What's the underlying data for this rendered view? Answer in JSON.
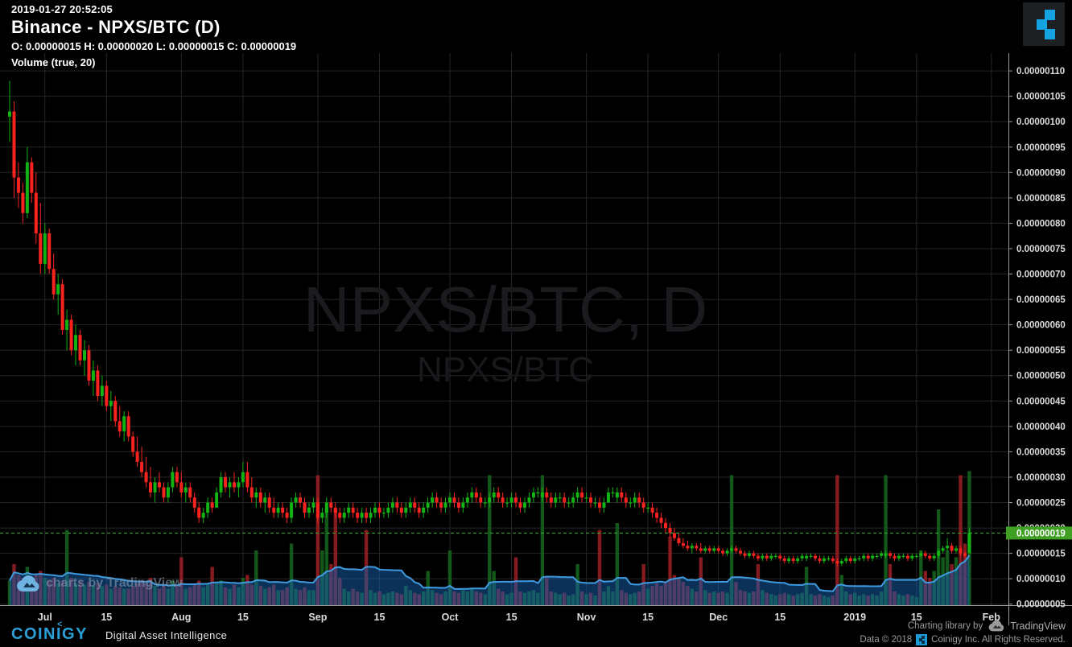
{
  "header": {
    "timestamp": "2019-01-27 20:52:05",
    "title": "Binance - NPXS/BTC (D)",
    "ohlc": "O: 0.00000015 H: 0.00000020 L: 0.00000015 C: 0.00000019",
    "indicator_label": "Volume (true, 20)"
  },
  "watermark": {
    "primary": "NPXS/BTC, D",
    "secondary": "NPXS/BTC"
  },
  "price_axis": {
    "ticks": [
      "0.00000110",
      "0.00000105",
      "0.00000100",
      "0.00000095",
      "0.00000090",
      "0.00000085",
      "0.00000080",
      "0.00000075",
      "0.00000070",
      "0.00000065",
      "0.00000060",
      "0.00000055",
      "0.00000050",
      "0.00000045",
      "0.00000040",
      "0.00000035",
      "0.00000030",
      "0.00000025",
      "0.00000020",
      "0.00000015",
      "0.00000010",
      "0.00000005"
    ],
    "current_price_label": "0.00000019"
  },
  "time_axis": {
    "ticks": [
      {
        "label": "Jul",
        "i": 8
      },
      {
        "label": "15",
        "i": 22
      },
      {
        "label": "Aug",
        "i": 39
      },
      {
        "label": "15",
        "i": 53
      },
      {
        "label": "Sep",
        "i": 70
      },
      {
        "label": "15",
        "i": 84
      },
      {
        "label": "Oct",
        "i": 100
      },
      {
        "label": "15",
        "i": 114
      },
      {
        "label": "Nov",
        "i": 131
      },
      {
        "label": "15",
        "i": 145
      },
      {
        "label": "Dec",
        "i": 161
      },
      {
        "label": "15",
        "i": 175
      },
      {
        "label": "2019",
        "i": 192
      },
      {
        "label": "15",
        "i": 206
      },
      {
        "label": "Feb",
        "i": 223
      }
    ]
  },
  "branding": {
    "tv_chart_watermark": "charts by TradingView",
    "coinigy_wordmark": "COINIGY",
    "coinigy_caret": "<",
    "coinigy_tagline": "Digital Asset Intelligence",
    "charting_library_by": "Charting library by",
    "tradingview_name": "TradingView",
    "data_copyright": "Data © 2018",
    "rights_text": "Coinigy Inc. All Rights Reserved."
  },
  "colors": {
    "up": "#12b312",
    "down": "#f8231f",
    "vol_up": "rgba(22,96,30,0.9)",
    "vol_down": "rgba(156,30,36,0.85)",
    "ma_line": "#3f9be0",
    "ma_fill": "rgba(24,97,175,0.5)",
    "price_line": "#2eb82e",
    "badge_bg": "#3fa024",
    "grid": "#262626",
    "axis_text": "#dcdcdc",
    "axis_border": "#9a9a9a",
    "watermark_primary": "#191b1e",
    "watermark_secondary": "#17191c"
  },
  "chart_data": {
    "type": "candlestick",
    "exchange": "Binance",
    "symbol": "NPXS/BTC",
    "interval": "D",
    "price_unit": "1e-8 BTC (satoshi)",
    "title": "Binance - NPXS/BTC (D)",
    "last_ohlc": {
      "open": 15,
      "high": 20,
      "low": 15,
      "close": 19
    },
    "current_price": 19,
    "y_domain": [
      4.8,
      113.5
    ],
    "y_grid_step": 5,
    "volume_ma_period": 20,
    "legend": "Volume (true, 20)",
    "candles_format": [
      "open",
      "high",
      "low",
      "close",
      "relative_volume"
    ],
    "candles": [
      [
        101,
        108,
        96,
        102,
        18
      ],
      [
        102,
        104,
        85,
        89,
        30
      ],
      [
        89,
        92,
        83,
        86,
        22
      ],
      [
        86,
        88,
        80,
        82,
        20
      ],
      [
        82,
        95,
        81,
        92,
        28
      ],
      [
        92,
        93,
        84,
        86,
        18
      ],
      [
        86,
        90,
        76,
        78,
        22
      ],
      [
        78,
        84,
        70,
        72,
        25
      ],
      [
        72,
        80,
        70,
        78,
        20
      ],
      [
        78,
        79,
        70,
        71,
        18
      ],
      [
        71,
        74,
        65,
        66,
        20
      ],
      [
        66,
        70,
        62,
        68,
        16
      ],
      [
        68,
        69,
        58,
        59,
        18
      ],
      [
        59,
        63,
        55,
        61,
        55
      ],
      [
        61,
        62,
        54,
        55,
        20
      ],
      [
        55,
        60,
        52,
        58,
        16
      ],
      [
        58,
        59,
        52,
        53,
        18
      ],
      [
        53,
        57,
        50,
        55,
        15
      ],
      [
        55,
        56,
        48,
        49,
        17
      ],
      [
        49,
        53,
        46,
        51,
        14
      ],
      [
        51,
        52,
        45,
        46,
        16
      ],
      [
        46,
        50,
        44,
        48,
        14
      ],
      [
        48,
        49,
        43,
        44,
        15
      ],
      [
        44,
        47,
        41,
        45,
        12
      ],
      [
        45,
        46,
        40,
        41,
        14
      ],
      [
        41,
        44,
        38,
        39,
        13
      ],
      [
        39,
        43,
        37,
        42,
        12
      ],
      [
        42,
        43,
        37,
        38,
        12
      ],
      [
        38,
        39,
        34,
        35,
        14
      ],
      [
        35,
        38,
        32,
        33,
        16
      ],
      [
        33,
        36,
        30,
        31,
        18
      ],
      [
        31,
        34,
        28,
        29,
        16
      ],
      [
        29,
        32,
        26,
        27,
        20
      ],
      [
        27,
        30,
        25,
        29,
        14
      ],
      [
        29,
        31,
        27,
        28,
        12
      ],
      [
        28,
        29,
        25,
        26,
        14
      ],
      [
        26,
        29,
        25,
        28,
        12
      ],
      [
        28,
        32,
        27,
        31,
        18
      ],
      [
        31,
        32,
        28,
        29,
        14
      ],
      [
        29,
        31,
        26,
        27,
        35
      ],
      [
        27,
        29,
        25,
        28,
        12
      ],
      [
        28,
        29,
        25,
        26,
        13
      ],
      [
        26,
        27,
        23,
        24,
        15
      ],
      [
        24,
        25,
        21,
        22,
        18
      ],
      [
        22,
        24,
        21,
        23,
        13
      ],
      [
        23,
        26,
        22,
        25,
        15
      ],
      [
        25,
        26,
        23,
        24,
        28
      ],
      [
        24,
        28,
        24,
        27,
        16
      ],
      [
        27,
        31,
        26,
        30,
        18
      ],
      [
        30,
        31,
        27,
        28,
        13
      ],
      [
        28,
        30,
        26,
        29,
        12
      ],
      [
        29,
        31,
        27,
        28,
        15
      ],
      [
        28,
        30,
        26,
        29,
        13
      ],
      [
        29,
        33,
        28,
        31,
        20
      ],
      [
        31,
        33,
        27,
        28,
        22
      ],
      [
        28,
        30,
        25,
        26,
        15
      ],
      [
        26,
        28,
        24,
        27,
        40
      ],
      [
        27,
        28,
        24,
        25,
        14
      ],
      [
        25,
        27,
        23,
        26,
        12
      ],
      [
        26,
        27,
        23,
        24,
        13
      ],
      [
        24,
        26,
        22,
        23,
        15
      ],
      [
        23,
        25,
        22,
        24,
        11
      ],
      [
        24,
        25,
        22,
        23,
        11
      ],
      [
        23,
        24,
        21,
        22,
        13
      ],
      [
        22,
        26,
        21,
        25,
        45
      ],
      [
        25,
        27,
        24,
        26,
        12
      ],
      [
        26,
        27,
        24,
        25,
        11
      ],
      [
        25,
        26,
        22,
        23,
        13
      ],
      [
        23,
        25,
        22,
        24,
        11
      ],
      [
        24,
        26,
        23,
        25,
        11
      ],
      [
        25,
        26,
        21,
        22,
        95
      ],
      [
        22,
        24,
        21,
        23,
        40
      ],
      [
        23,
        26,
        22,
        25,
        70
      ],
      [
        25,
        26,
        23,
        24,
        30
      ],
      [
        24,
        25,
        22,
        23,
        70
      ],
      [
        23,
        24,
        21,
        22,
        20
      ],
      [
        22,
        24,
        21,
        23,
        12
      ],
      [
        23,
        25,
        22,
        24,
        10
      ],
      [
        24,
        25,
        22,
        23,
        12
      ],
      [
        23,
        24,
        21,
        22,
        10
      ],
      [
        22,
        24,
        21,
        23,
        9
      ],
      [
        23,
        24,
        21,
        22,
        55
      ],
      [
        22,
        24,
        21,
        23,
        11
      ],
      [
        23,
        25,
        22,
        24,
        9
      ],
      [
        24,
        25,
        22,
        23,
        10
      ],
      [
        23,
        24,
        22,
        23,
        8
      ],
      [
        23,
        25,
        22,
        24,
        9
      ],
      [
        24,
        26,
        23,
        25,
        10
      ],
      [
        25,
        26,
        23,
        24,
        9
      ],
      [
        24,
        25,
        22,
        23,
        8
      ],
      [
        23,
        25,
        22,
        24,
        14
      ],
      [
        24,
        26,
        23,
        25,
        11
      ],
      [
        25,
        26,
        23,
        24,
        9
      ],
      [
        24,
        25,
        22,
        23,
        8
      ],
      [
        23,
        25,
        22,
        24,
        10
      ],
      [
        24,
        26,
        23,
        25,
        25
      ],
      [
        25,
        27,
        24,
        26,
        11
      ],
      [
        26,
        27,
        24,
        25,
        9
      ],
      [
        25,
        26,
        23,
        24,
        8
      ],
      [
        24,
        26,
        23,
        25,
        10
      ],
      [
        25,
        27,
        24,
        26,
        40
      ],
      [
        26,
        27,
        24,
        25,
        10
      ],
      [
        25,
        26,
        23,
        24,
        9
      ],
      [
        24,
        26,
        23,
        25,
        11
      ],
      [
        25,
        27,
        24,
        26,
        10
      ],
      [
        26,
        28,
        25,
        27,
        12
      ],
      [
        27,
        28,
        25,
        26,
        10
      ],
      [
        26,
        27,
        24,
        25,
        9
      ],
      [
        25,
        26,
        24,
        25,
        8
      ],
      [
        25,
        27,
        24,
        26,
        95
      ],
      [
        26,
        28,
        25,
        27,
        25
      ],
      [
        27,
        28,
        25,
        26,
        12
      ],
      [
        26,
        27,
        24,
        25,
        10
      ],
      [
        25,
        26,
        24,
        25,
        8
      ],
      [
        25,
        27,
        24,
        26,
        9
      ],
      [
        26,
        27,
        24,
        25,
        35
      ],
      [
        25,
        26,
        23,
        24,
        10
      ],
      [
        24,
        26,
        23,
        25,
        9
      ],
      [
        25,
        27,
        24,
        26,
        10
      ],
      [
        26,
        28,
        25,
        27,
        11
      ],
      [
        27,
        28,
        26,
        27,
        9
      ],
      [
        26,
        28,
        25,
        27,
        95
      ],
      [
        27,
        28,
        25,
        26,
        20
      ],
      [
        26,
        27,
        24,
        25,
        10
      ],
      [
        25,
        27,
        24,
        26,
        9
      ],
      [
        26,
        27,
        25,
        26,
        8
      ],
      [
        26,
        27,
        24,
        25,
        9
      ],
      [
        25,
        26,
        24,
        25,
        7
      ],
      [
        25,
        27,
        24,
        26,
        8
      ],
      [
        26,
        28,
        25,
        27,
        30
      ],
      [
        27,
        28,
        25,
        26,
        10
      ],
      [
        26,
        27,
        25,
        26,
        8
      ],
      [
        26,
        27,
        24,
        25,
        9
      ],
      [
        25,
        26,
        24,
        25,
        7
      ],
      [
        25,
        26,
        23,
        24,
        55
      ],
      [
        24,
        26,
        23,
        25,
        10
      ],
      [
        25,
        28,
        25,
        27,
        14
      ],
      [
        27,
        28,
        26,
        27,
        10
      ],
      [
        26,
        28,
        25,
        27,
        60
      ],
      [
        27,
        28,
        25,
        26,
        11
      ],
      [
        26,
        27,
        24,
        25,
        9
      ],
      [
        25,
        26,
        24,
        25,
        8
      ],
      [
        25,
        27,
        24,
        26,
        9
      ],
      [
        26,
        27,
        24,
        25,
        10
      ],
      [
        25,
        26,
        23,
        24,
        30
      ],
      [
        24,
        25,
        23,
        24,
        12
      ],
      [
        24,
        25,
        22,
        23,
        14
      ],
      [
        23,
        24,
        21,
        22,
        16
      ],
      [
        22,
        23,
        20,
        21,
        14
      ],
      [
        21,
        22,
        19,
        20,
        17
      ],
      [
        20,
        21,
        18,
        19,
        50
      ],
      [
        19,
        20,
        17.5,
        18,
        22
      ],
      [
        18,
        19,
        16.5,
        17,
        20
      ],
      [
        17,
        18,
        16,
        16.5,
        17
      ],
      [
        16.5,
        17.5,
        15.5,
        16,
        14
      ],
      [
        16,
        17,
        15,
        16.5,
        12
      ],
      [
        16.5,
        17,
        15.5,
        16,
        10
      ],
      [
        16,
        17,
        15,
        15.5,
        35
      ],
      [
        15.5,
        16.5,
        15,
        16,
        11
      ],
      [
        16,
        16.5,
        15,
        15.5,
        9
      ],
      [
        15.5,
        16.5,
        15,
        16,
        10
      ],
      [
        16,
        16.5,
        15,
        15.5,
        9
      ],
      [
        15.5,
        16,
        14.5,
        15,
        10
      ],
      [
        15,
        16,
        14.5,
        15.5,
        9
      ],
      [
        15.5,
        16.5,
        15,
        16,
        95
      ],
      [
        16,
        16.5,
        15,
        15.5,
        17
      ],
      [
        15.5,
        16,
        14.5,
        15,
        11
      ],
      [
        15,
        15.5,
        14,
        14.5,
        10
      ],
      [
        14.5,
        15.5,
        14,
        15,
        9
      ],
      [
        15,
        15.5,
        14,
        14.5,
        10
      ],
      [
        14.5,
        15,
        13.5,
        14,
        30
      ],
      [
        14,
        15,
        13.5,
        14.5,
        11
      ],
      [
        14.5,
        15,
        13.5,
        14,
        9
      ],
      [
        14,
        15,
        13.5,
        14.5,
        8
      ],
      [
        14.5,
        15,
        14,
        14.5,
        7
      ],
      [
        14.5,
        15,
        13.5,
        14,
        8
      ],
      [
        14,
        14.5,
        13,
        13.5,
        9
      ],
      [
        13.5,
        14.5,
        13,
        14,
        8
      ],
      [
        14,
        14.5,
        13,
        13.5,
        7
      ],
      [
        13.5,
        14.5,
        13,
        14,
        8
      ],
      [
        14,
        15,
        13.5,
        14.5,
        9
      ],
      [
        14,
        15,
        13.5,
        14.5,
        28
      ],
      [
        14.5,
        15,
        14,
        14.5,
        8
      ],
      [
        14.5,
        15,
        13.5,
        14,
        7
      ],
      [
        14,
        14.5,
        13,
        13.5,
        8
      ],
      [
        13.5,
        14.5,
        13,
        14,
        7
      ],
      [
        14,
        14.5,
        13.5,
        14,
        6
      ],
      [
        14,
        14.5,
        13,
        13.5,
        7
      ],
      [
        13.5,
        14,
        12.5,
        13,
        95
      ],
      [
        13,
        14,
        12.5,
        13.5,
        22
      ],
      [
        13.5,
        14.5,
        13,
        14,
        10
      ],
      [
        14,
        14.5,
        13,
        13.5,
        8
      ],
      [
        13.5,
        14.5,
        13,
        14,
        9
      ],
      [
        14,
        14.5,
        13.5,
        14,
        7
      ],
      [
        14,
        15,
        13.5,
        14.5,
        8
      ],
      [
        14.5,
        15,
        13.5,
        14,
        7
      ],
      [
        14,
        15,
        13.5,
        14.5,
        8
      ],
      [
        14.5,
        15,
        14,
        14.5,
        7
      ],
      [
        14.5,
        15.5,
        14,
        15,
        10
      ],
      [
        14.5,
        15.5,
        14,
        15,
        95
      ],
      [
        15,
        15.5,
        14,
        14.5,
        30
      ],
      [
        14.5,
        15,
        13.5,
        14,
        10
      ],
      [
        14,
        15,
        13.5,
        14.5,
        8
      ],
      [
        14.5,
        15,
        14,
        14.5,
        7
      ],
      [
        14.5,
        15,
        13.5,
        14,
        8
      ],
      [
        14,
        15,
        13.5,
        14.5,
        7
      ],
      [
        14.5,
        15,
        14,
        14.5,
        6
      ],
      [
        14.5,
        15.5,
        14,
        15,
        40
      ],
      [
        15,
        15.5,
        14,
        14.5,
        25
      ],
      [
        14.5,
        15,
        13.5,
        14,
        20
      ],
      [
        14,
        15,
        13.5,
        14.5,
        25
      ],
      [
        14.5,
        16,
        14,
        15.5,
        70
      ],
      [
        15.5,
        16.5,
        15,
        16,
        35
      ],
      [
        16,
        18,
        15.5,
        16.5,
        40
      ],
      [
        16.5,
        17,
        15,
        15.5,
        30
      ],
      [
        15.5,
        16.5,
        15,
        16,
        35
      ],
      [
        16,
        16.5,
        14.5,
        15,
        95
      ],
      [
        15,
        15.5,
        14,
        14.5,
        45
      ],
      [
        15,
        20,
        15,
        19,
        98
      ]
    ]
  }
}
